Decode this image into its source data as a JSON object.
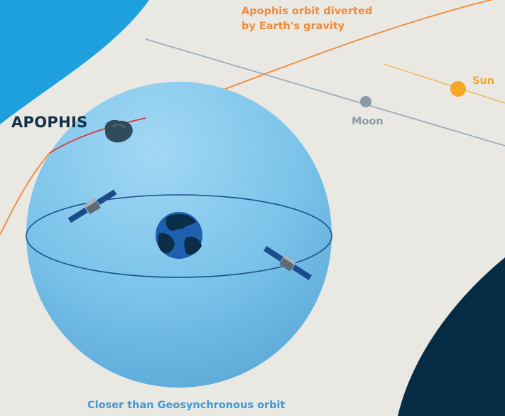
{
  "labels": {
    "orbit_line1": "Apophis orbit diverted",
    "orbit_line2": "by Earth's gravity",
    "asteroid": "APOPHIS",
    "moon": "Moon",
    "sun": "Sun",
    "geo": "Closer than Geosynchronous orbit"
  },
  "colors": {
    "background": "#e9e8e3",
    "corner_cyan": "#1ea0dc",
    "corner_navy": "#062c45",
    "sphere": "#7bc4ea",
    "geo_ring": "#1b4f8c",
    "orbit_before": "#f08a38",
    "orbit_near_earth": "#e0342d",
    "moon_line": "#9aa7b2",
    "moon": "#8b9aa7",
    "sun": "#f5a623",
    "asteroid": "#2f4b5c",
    "earth_ocean": "#1e5fb0",
    "earth_land": "#0b2d48",
    "satellite_panel": "#1c4a8a"
  }
}
